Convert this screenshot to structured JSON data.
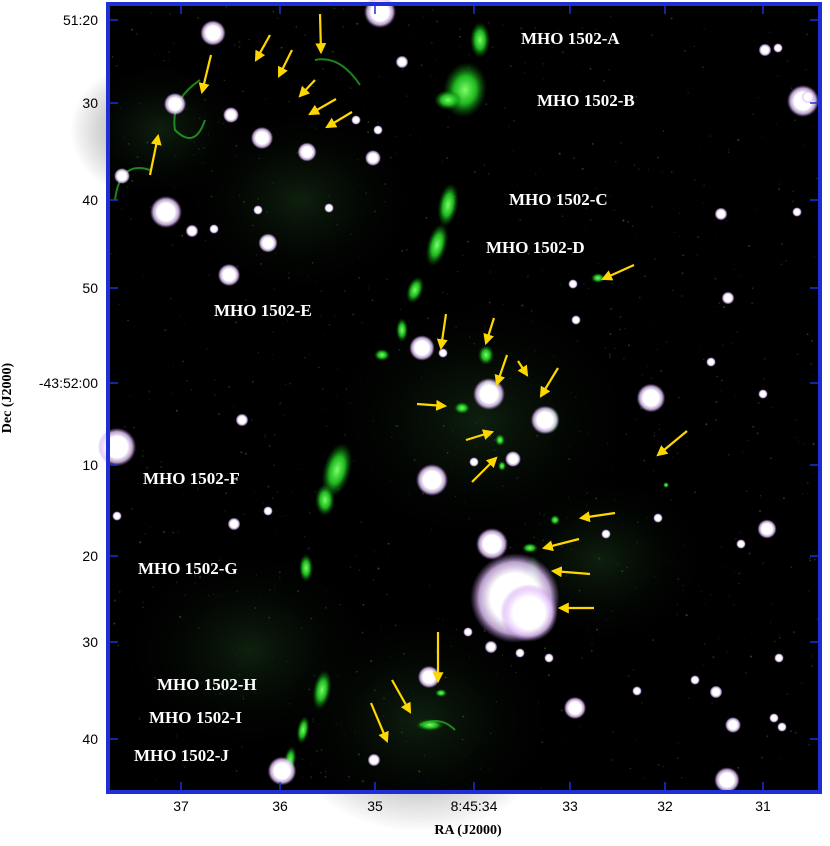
{
  "axes": {
    "xlabel": "RA (J2000)",
    "ylabel": "Dec (J2000)",
    "xticks": [
      "37",
      "36",
      "35",
      "8:45:34",
      "33",
      "32",
      "31"
    ],
    "yticks": [
      "51:20",
      "30",
      "40",
      "50",
      "-43:52:00",
      "10",
      "20",
      "30",
      "40"
    ]
  },
  "labels": [
    "MHO 1502-A",
    "MHO 1502-B",
    "MHO 1502-C",
    "MHO 1502-D",
    "MHO 1502-E",
    "MHO 1502-F",
    "MHO 1502-G",
    "MHO 1502-H",
    "MHO 1502-I",
    "MHO 1502-J"
  ],
  "colors": {
    "background": "#000000",
    "frame": "#1f2fd6",
    "emission": "#22dd22",
    "arrows": "#ffd700",
    "stars": "#ffffff",
    "star_halo": "#d9a6ff"
  }
}
